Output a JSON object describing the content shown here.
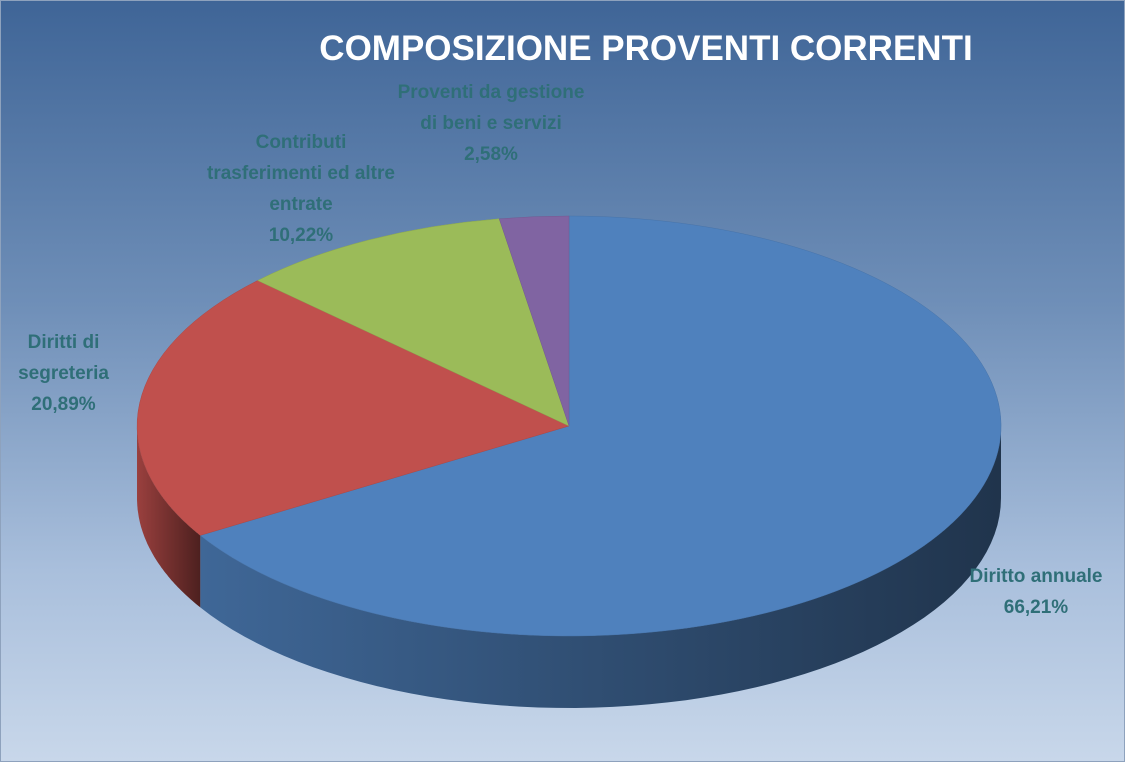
{
  "chart_data": {
    "type": "pie",
    "title": "COMPOSIZIONE PROVENTI CORRENTI",
    "categories": [
      "Diritto annuale",
      "Diritti di segreteria",
      "Contributi trasferimenti ed altre entrate",
      "Proventi da gestione di beni e servizi"
    ],
    "values": [
      66.21,
      20.89,
      10.22,
      2.58
    ],
    "value_labels": [
      "66,21%",
      "20,89%",
      "10,22%",
      "2,58%"
    ],
    "colors": [
      "#4f81bd",
      "#c0504d",
      "#9bbb59",
      "#8064a2"
    ]
  }
}
